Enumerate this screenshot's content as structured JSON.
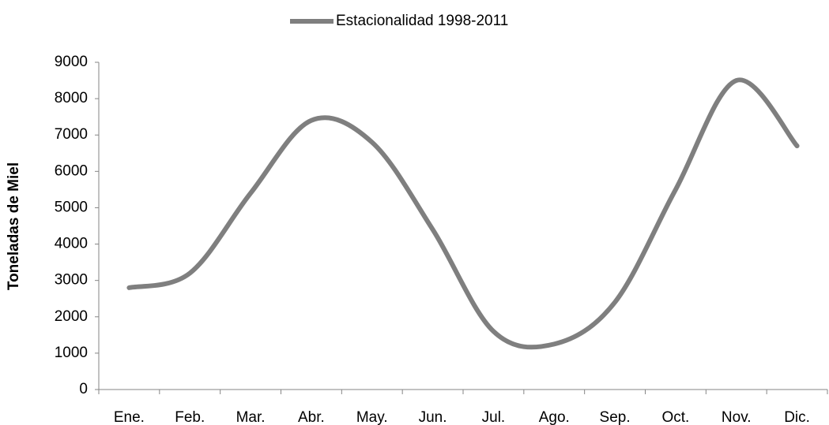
{
  "chart_data": {
    "type": "line",
    "y_label": "Toneladas de Miel",
    "categories": [
      "Ene.",
      "Feb.",
      "Mar.",
      "Abr.",
      "May.",
      "Jun.",
      "Jul.",
      "Ago.",
      "Sep.",
      "Oct.",
      "Nov.",
      "Dic."
    ],
    "series": [
      {
        "name": "Estacionalidad 1998-2011",
        "color": "#7f7f7f",
        "values": [
          2800,
          3200,
          5400,
          7400,
          6800,
          4400,
          1600,
          1250,
          2400,
          5500,
          8500,
          6700
        ]
      }
    ],
    "ylim": [
      0,
      9000
    ],
    "yticks": [
      0,
      1000,
      2000,
      3000,
      4000,
      5000,
      6000,
      7000,
      8000,
      9000
    ],
    "smooth": true,
    "grid": false,
    "legend": "top"
  }
}
